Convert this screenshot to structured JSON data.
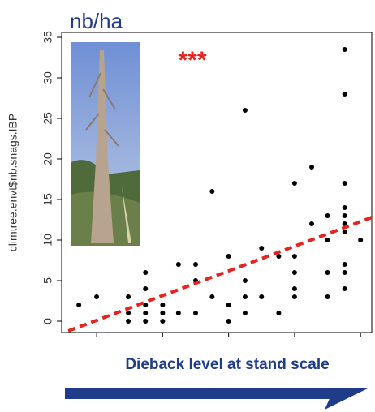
{
  "chart_data": {
    "type": "scatter",
    "title": "nb/ha",
    "annotation": "***",
    "y_label": "climtree.envt$nb.snags.IBP",
    "x_label": "Dieback level at stand scale",
    "x": [
      0.73,
      1,
      1.48,
      1.48,
      1.48,
      1.74,
      1.74,
      1.74,
      1.74,
      1.74,
      2,
      2,
      2,
      2.24,
      2.24,
      2.5,
      2.5,
      2.5,
      2.75,
      2.75,
      3,
      3,
      3,
      3.25,
      3.25,
      3.25,
      3.25,
      3.5,
      3.5,
      3.76,
      3.76,
      4,
      4,
      4,
      4,
      4,
      4.26,
      4.26,
      4.5,
      4.5,
      4.5,
      4.5,
      4.76,
      4.76,
      4.76,
      4.76,
      4.76,
      4.76,
      4.76,
      4.76,
      4.76,
      4.76,
      5
    ],
    "values": [
      2,
      3,
      0,
      1,
      3,
      6,
      4,
      2,
      1,
      0,
      2,
      1,
      0,
      7,
      1,
      7,
      5,
      1,
      16,
      3,
      8,
      2,
      0,
      26,
      5,
      3,
      1,
      9,
      3,
      8,
      1,
      17,
      8,
      6,
      4,
      3,
      19,
      12,
      13,
      10,
      6,
      3,
      33.5,
      28,
      17,
      14,
      13,
      12,
      11,
      7,
      6,
      4,
      10
    ],
    "color": "#000000",
    "trend": {
      "x": [
        0.57,
        5.17
      ],
      "values": [
        -1.2,
        12.8
      ],
      "color": "#e8231e"
    },
    "xlim": [
      0.47,
      5.17
    ],
    "ylim": [
      -1.4,
      35.6
    ],
    "xticks": [
      1,
      2,
      3,
      4,
      5
    ],
    "yticks": [
      0,
      5,
      10,
      15,
      20,
      25,
      30,
      35
    ]
  }
}
